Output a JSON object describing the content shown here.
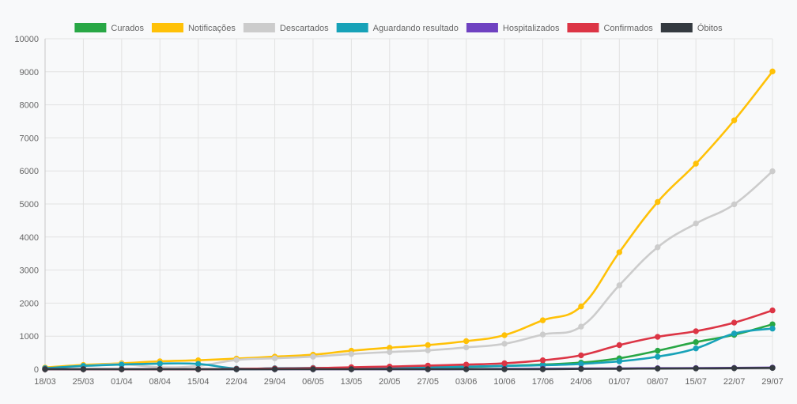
{
  "chart_data": {
    "type": "line",
    "title": "",
    "xlabel": "",
    "ylabel": "",
    "ylim": [
      0,
      10000
    ],
    "yticks": [
      0,
      1000,
      2000,
      3000,
      4000,
      5000,
      6000,
      7000,
      8000,
      9000,
      10000
    ],
    "grid": true,
    "legend_position": "top",
    "categories": [
      "18/03",
      "25/03",
      "01/04",
      "08/04",
      "15/04",
      "22/04",
      "29/04",
      "06/05",
      "13/05",
      "20/05",
      "27/05",
      "03/06",
      "10/06",
      "17/06",
      "24/06",
      "01/07",
      "08/07",
      "15/07",
      "22/07",
      "29/07"
    ],
    "series": [
      {
        "name": "Curados",
        "color": "#28a745",
        "values": [
          0,
          0,
          0,
          0,
          0,
          0,
          5,
          10,
          20,
          30,
          50,
          70,
          100,
          140,
          200,
          330,
          560,
          820,
          1040,
          1360
        ]
      },
      {
        "name": "Notificações",
        "color": "#ffc107",
        "values": [
          50,
          130,
          180,
          240,
          270,
          320,
          380,
          440,
          560,
          650,
          730,
          850,
          1030,
          1480,
          1900,
          3540,
          5060,
          6220,
          7530,
          9010
        ]
      },
      {
        "name": "Descartados",
        "color": "#cccccc",
        "values": [
          20,
          100,
          150,
          60,
          100,
          280,
          330,
          380,
          460,
          520,
          570,
          660,
          770,
          1050,
          1290,
          2540,
          3690,
          4410,
          4990,
          5990
        ]
      },
      {
        "name": "Aguardando resultado",
        "color": "#17a2b8",
        "values": [
          30,
          100,
          140,
          170,
          160,
          20,
          30,
          40,
          40,
          50,
          60,
          80,
          100,
          120,
          160,
          240,
          380,
          630,
          1080,
          1230
        ]
      },
      {
        "name": "Hospitalizados",
        "color": "#6f42c1",
        "values": [
          0,
          0,
          0,
          0,
          0,
          0,
          0,
          0,
          0,
          0,
          0,
          5,
          10,
          15,
          20,
          25,
          30,
          35,
          40,
          50
        ]
      },
      {
        "name": "Confirmados",
        "color": "#dc3545",
        "values": [
          0,
          0,
          0,
          0,
          0,
          10,
          20,
          30,
          60,
          80,
          110,
          140,
          180,
          270,
          420,
          730,
          980,
          1150,
          1410,
          1780
        ]
      },
      {
        "name": "Óbitos",
        "color": "#343a40",
        "values": [
          0,
          0,
          0,
          0,
          0,
          0,
          0,
          0,
          0,
          0,
          0,
          0,
          0,
          0,
          10,
          15,
          20,
          25,
          30,
          40
        ]
      }
    ]
  }
}
